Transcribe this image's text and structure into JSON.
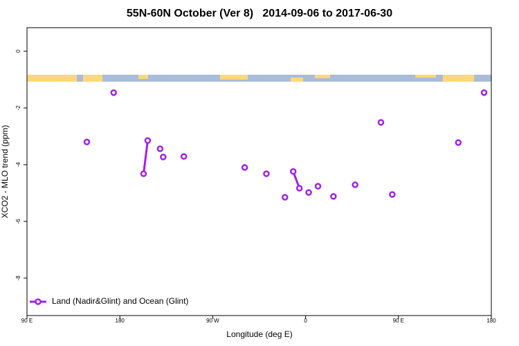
{
  "chart_data": {
    "type": "line",
    "title": "55N-60N October (Ver 8)   2014-09-06 to 2017-06-30",
    "x_label": "Longitude (deg E)",
    "y_label": "XCO2 - MLO trend (ppm)",
    "xlim": [
      90,
      540
    ],
    "ylim": [
      -9.32,
      0.83
    ],
    "xticks": [
      {
        "value": 90,
        "label": "90 E"
      },
      180,
      {
        "value": 270,
        "label": "90 W"
      },
      {
        "value": 360,
        "label": "0"
      },
      {
        "value": 450,
        "label": "90 E"
      },
      {
        "value": 540,
        "label": "180"
      }
    ],
    "yticks": [
      0,
      -2,
      -4,
      -6,
      -8
    ],
    "legend": "bottom-left",
    "series": [
      {
        "name": "Land (Nadir&Glint) and Ocean (Glint)",
        "color": "#a020f0",
        "x": [
          148,
          null,
          174,
          null,
          203,
          207,
          null,
          219,
          null,
          222,
          null,
          242,
          null,
          301,
          null,
          322,
          null,
          340,
          null,
          348,
          354,
          null,
          363,
          null,
          372,
          null,
          387,
          null,
          408,
          null,
          433,
          null,
          444,
          null,
          508,
          null,
          533
        ],
        "values": [
          -3.2,
          null,
          -1.46,
          null,
          -4.32,
          -3.15,
          null,
          -3.44,
          null,
          -3.73,
          null,
          -3.71,
          null,
          -4.1,
          null,
          -4.32,
          null,
          -5.15,
          null,
          -4.24,
          -4.83,
          null,
          -4.98,
          null,
          -4.76,
          null,
          -5.12,
          null,
          -4.71,
          null,
          -2.51,
          null,
          -5.05,
          null,
          -3.22,
          null,
          -1.46
        ]
      }
    ]
  }
}
